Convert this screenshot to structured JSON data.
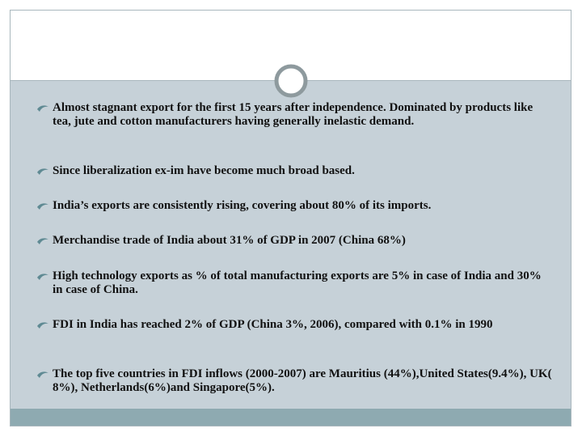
{
  "slide": {
    "bullets": [
      "Almost stagnant export for the first 15 years after independence. Dominated by products like tea, jute and cotton manufacturers having generally inelastic demand.",
      "Since liberalization ex-im have become much broad based.",
      "India’s exports are consistently rising, covering about 80% of its imports.",
      "Merchandise trade of India about 31% of GDP in 2007 (China 68%)",
      "High technology exports as % of total manufacturing exports are 5% in case of India and 30% in case of China.",
      "FDI in India has reached 2% of GDP (China 3%, 2006), compared with 0.1% in 1990",
      "The top five countries in FDI inflows (2000-2007) are Mauritius (44%),United States(9.4%), UK( 8%), Netherlands(6%)and Singapore(5%)."
    ]
  }
}
